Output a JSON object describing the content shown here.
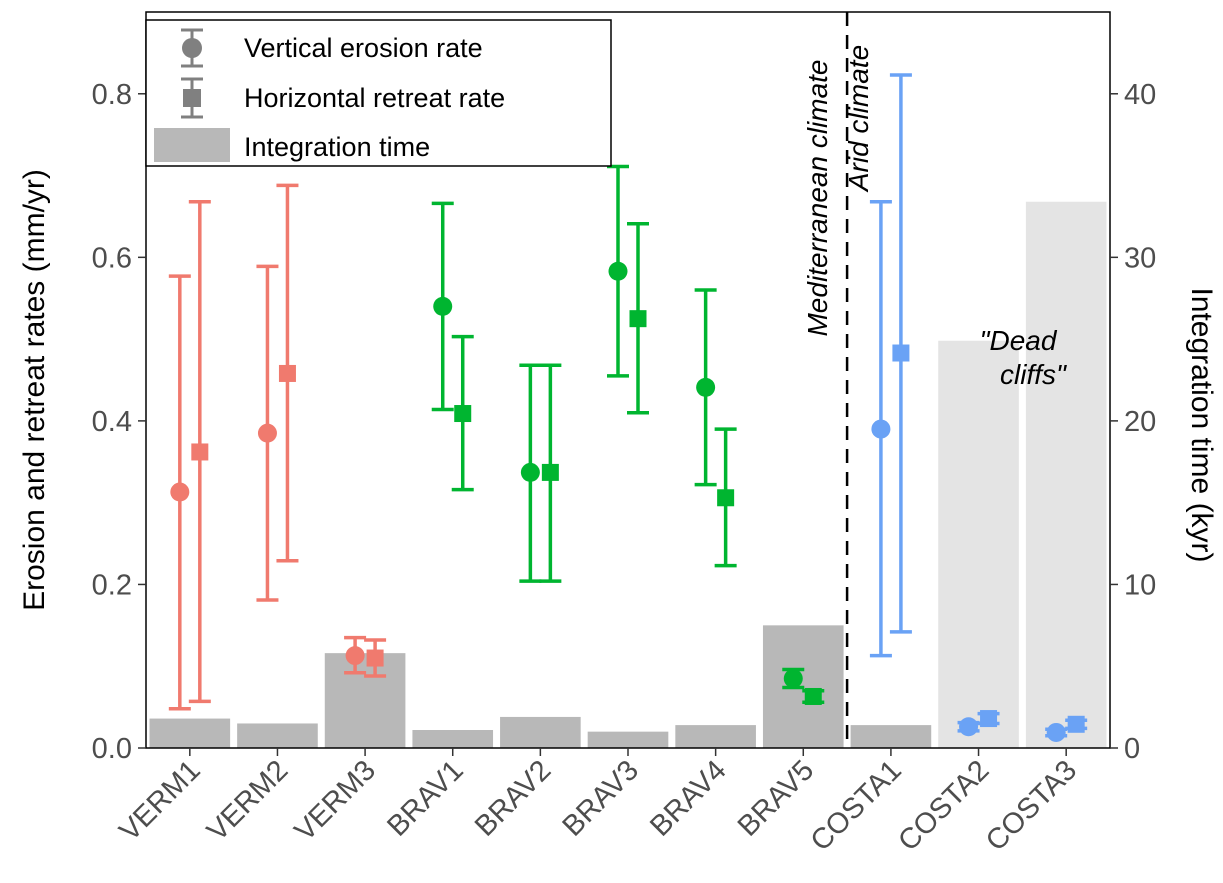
{
  "chart_data": {
    "type": "scatter",
    "categories": [
      "VERM1",
      "VERM2",
      "VERM3",
      "BRAV1",
      "BRAV2",
      "BRAV3",
      "BRAV4",
      "BRAV5",
      "COSTA1",
      "COSTA2",
      "COSTA3"
    ],
    "groups": [
      "VERM",
      "VERM",
      "VERM",
      "BRAV",
      "BRAV",
      "BRAV",
      "BRAV",
      "BRAV",
      "COSTA",
      "COSTA",
      "COSTA"
    ],
    "group_colors": {
      "VERM": "#f07a6e",
      "BRAV": "#00b530",
      "COSTA": "#6aa2f5"
    },
    "ylabel": "Erosion and retreat rates (mm/yr)",
    "y2label": "Integration time (kyr)",
    "ylim": [
      0,
      0.9
    ],
    "y2lim": [
      0,
      45
    ],
    "yticks": [
      "0.0",
      "0.2",
      "0.4",
      "0.6",
      "0.8"
    ],
    "y2ticks": [
      "0",
      "10",
      "20",
      "30",
      "40"
    ],
    "series": [
      {
        "name": "Vertical erosion rate",
        "marker": "circle",
        "values": [
          0.313,
          0.385,
          0.113,
          0.54,
          0.337,
          0.583,
          0.441,
          0.085,
          0.39,
          0.026,
          0.019
        ],
        "lower": [
          0.048,
          0.181,
          0.092,
          0.414,
          0.204,
          0.455,
          0.322,
          0.074,
          0.113,
          0.021,
          0.015
        ],
        "upper": [
          0.577,
          0.589,
          0.135,
          0.666,
          0.468,
          0.711,
          0.56,
          0.096,
          0.668,
          0.031,
          0.023
        ]
      },
      {
        "name": "Horizontal retreat rate",
        "marker": "square",
        "values": [
          0.362,
          0.458,
          0.11,
          0.409,
          0.337,
          0.525,
          0.306,
          0.063,
          0.483,
          0.036,
          0.029
        ],
        "lower": [
          0.057,
          0.229,
          0.088,
          0.316,
          0.204,
          0.41,
          0.223,
          0.056,
          0.142,
          0.03,
          0.024
        ],
        "upper": [
          0.668,
          0.688,
          0.132,
          0.503,
          0.468,
          0.641,
          0.39,
          0.07,
          0.823,
          0.042,
          0.034
        ]
      },
      {
        "name": "Integration time",
        "marker": "bar",
        "axis": "right",
        "values": [
          1.8,
          1.5,
          5.8,
          1.1,
          1.9,
          1.0,
          1.4,
          7.5,
          1.4,
          24.9,
          33.4
        ],
        "bar_colors": [
          "#b8b8b8",
          "#b8b8b8",
          "#b8b8b8",
          "#b8b8b8",
          "#b8b8b8",
          "#b8b8b8",
          "#b8b8b8",
          "#b8b8b8",
          "#b8b8b8",
          "#e4e4e4",
          "#e4e4e4"
        ]
      }
    ],
    "divider_after": "BRAV5",
    "annotations": {
      "mediterranean": "Mediterranean climate",
      "arid": "Arid climate",
      "dead_line1": "\"Dead",
      "dead_line2": "cliffs\""
    },
    "legend": {
      "placement": "top-left",
      "items": [
        "Vertical erosion rate",
        "Horizontal retreat rate",
        "Integration time"
      ]
    }
  }
}
